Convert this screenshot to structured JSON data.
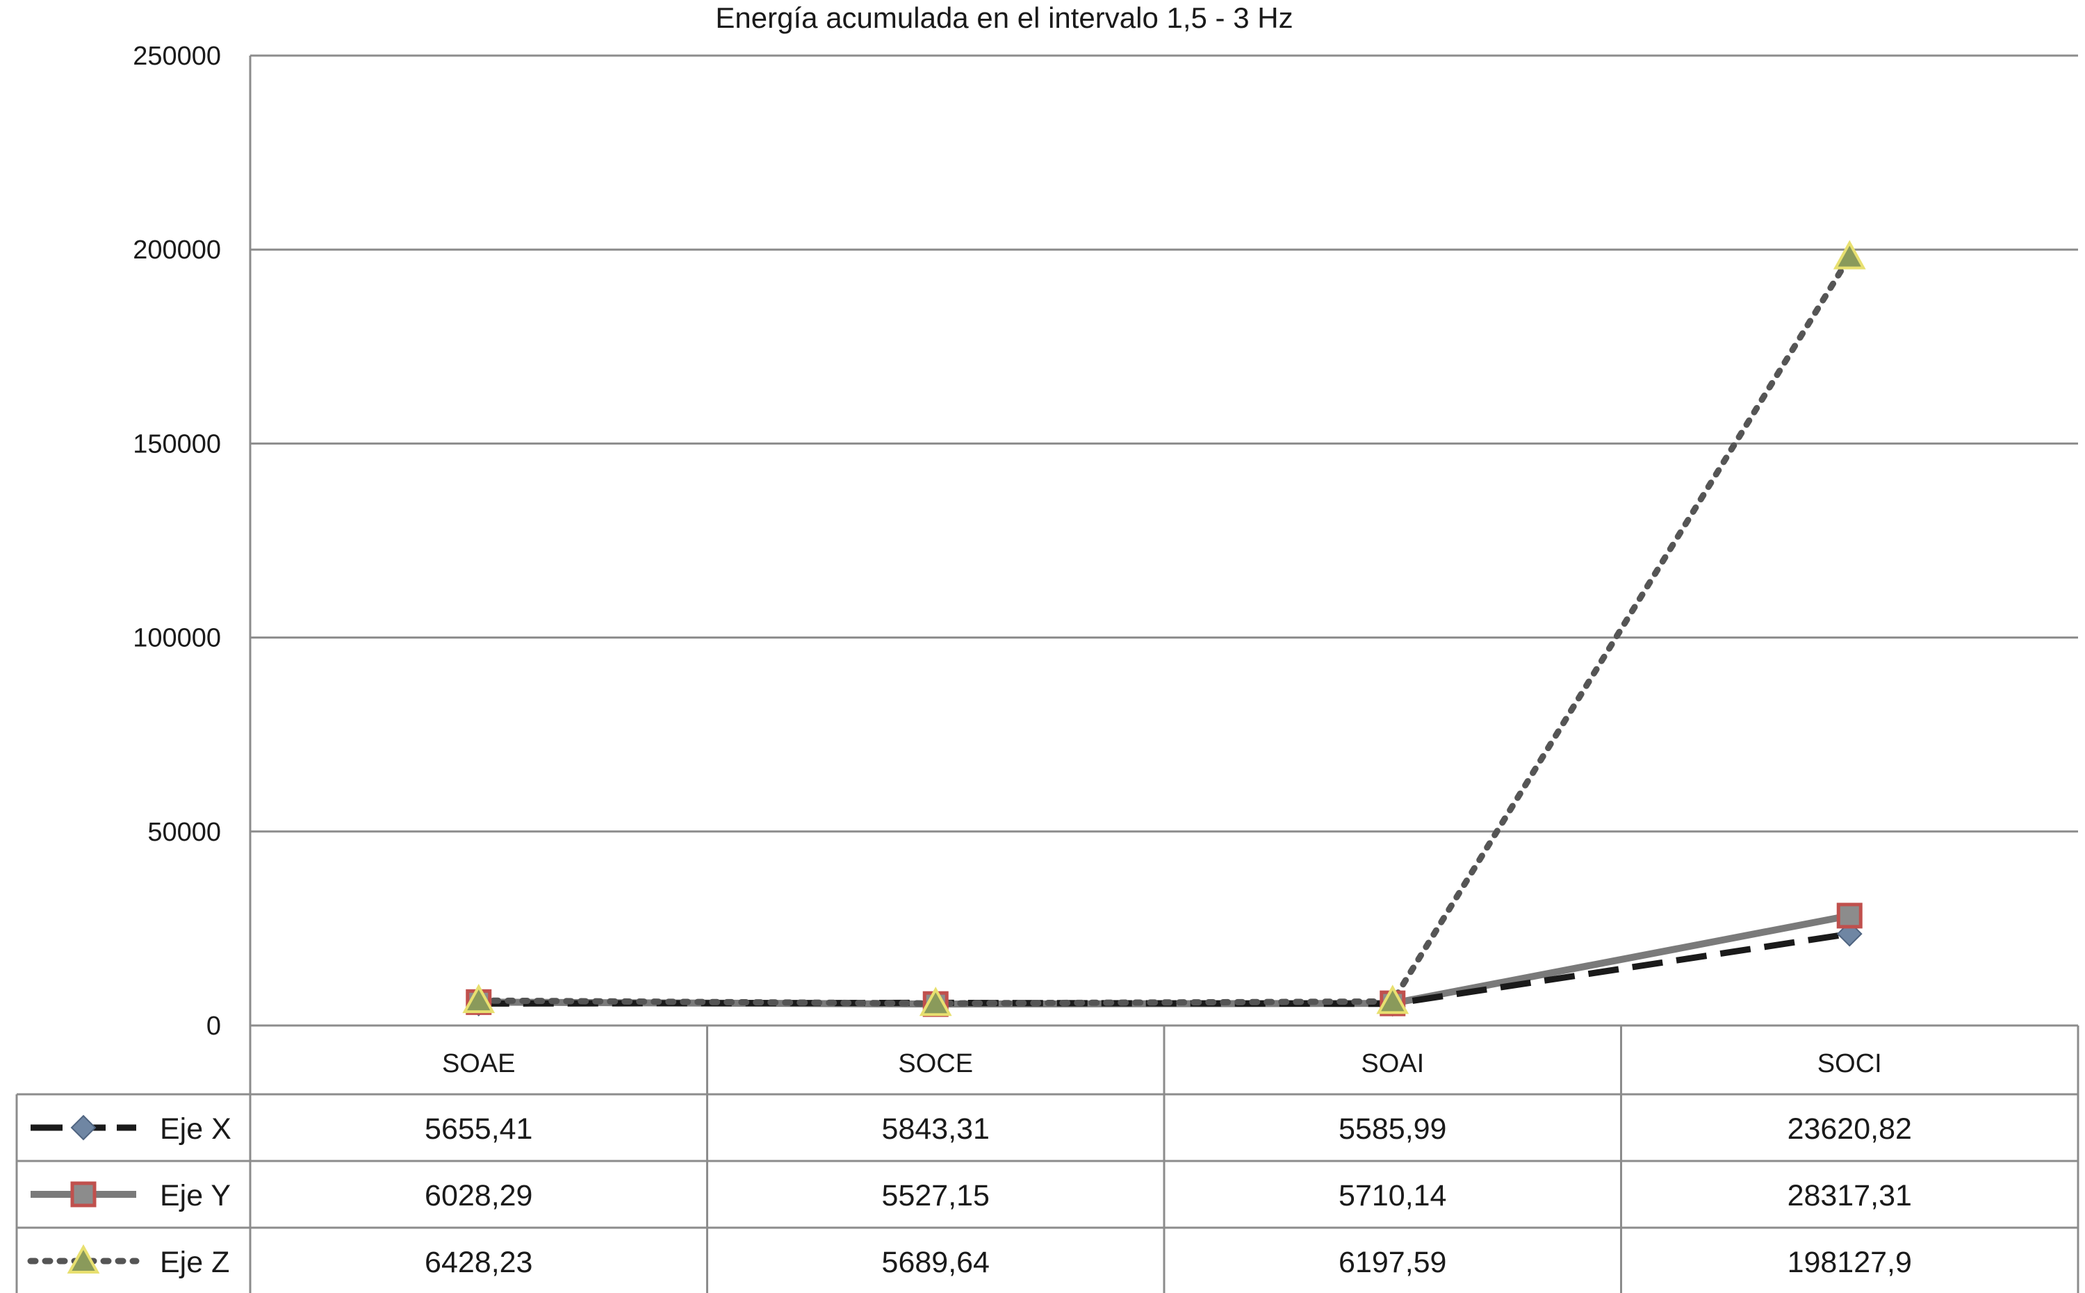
{
  "chart_data": {
    "type": "line",
    "title": "Energía acumulada en el intervalo 1,5 - 3 Hz",
    "xlabel": "",
    "ylabel": "",
    "ylim": [
      0,
      250000
    ],
    "yticks": [
      "0",
      "50000",
      "100000",
      "150000",
      "200000",
      "250000"
    ],
    "categories": [
      "SOAE",
      "SOCE",
      "SOAI",
      "SOCI"
    ],
    "grid": true,
    "legend": "data-table-left",
    "series": [
      {
        "name": "Eje X",
        "values": [
          5655.41,
          5843.31,
          5585.99,
          23620.82
        ],
        "labels": [
          "5655,41",
          "5843,31",
          "5585,99",
          "23620,82"
        ],
        "line_style": "dashed",
        "line_color": "#1a1a1a",
        "marker": "diamond",
        "marker_color": "#6f86a3"
      },
      {
        "name": "Eje Y",
        "values": [
          6028.29,
          5527.15,
          5710.14,
          28317.31
        ],
        "labels": [
          "6028,29",
          "5527,15",
          "5710,14",
          "28317,31"
        ],
        "line_style": "solid",
        "line_color": "#7a7a7a",
        "marker": "square",
        "marker_color": "#8c8c8c",
        "marker_edge": "#c0504d"
      },
      {
        "name": "Eje Z",
        "values": [
          6428.23,
          5689.64,
          6197.59,
          198127.9
        ],
        "labels": [
          "6428,23",
          "5689,64",
          "6197,59",
          "198127,9"
        ],
        "line_style": "dotted",
        "line_color": "#555555",
        "marker": "triangle",
        "marker_color": "#8a9a5b",
        "marker_edge": "#e8e070"
      }
    ]
  }
}
